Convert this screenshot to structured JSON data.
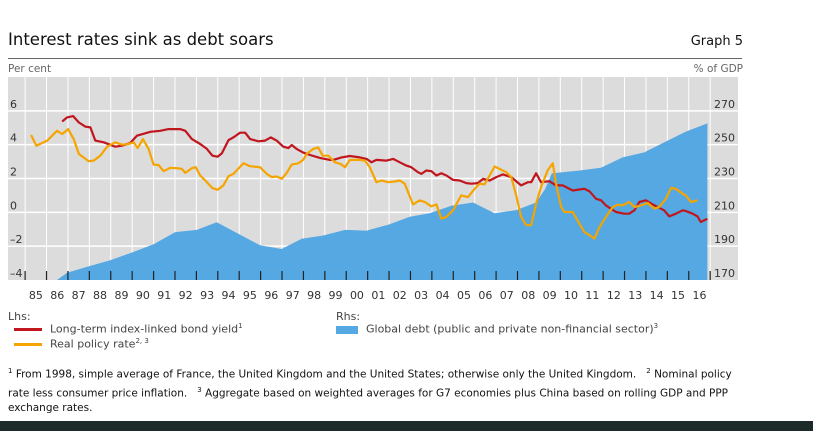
{
  "header": {
    "title": "Interest rates sink as debt soars",
    "graph_number": "Graph 5",
    "left_unit": "Per cent",
    "right_unit": "% of GDP"
  },
  "legend": {
    "lhs_label": "Lhs:",
    "rhs_label": "Rhs:",
    "items": [
      {
        "label": "Long-term index-linked bond yield",
        "sup": "1",
        "color": "#c0161d"
      },
      {
        "label": "Real policy rate",
        "sup": "2, 3",
        "color": "#f5a400"
      },
      {
        "label": "Global debt (public and private non-financial sector)",
        "sup": "3",
        "color": "#55a8e2"
      }
    ]
  },
  "footnotes": [
    {
      "sup": "1",
      "text": "From 1998, simple average of France, the United Kingdom and the United States; otherwise only the United Kingdom."
    },
    {
      "sup": "2",
      "text": "Nominal policy rate less consumer price inflation."
    },
    {
      "sup": "3",
      "text": "Aggregate based on weighted averages for G7 economies plus China based on rolling GDP and PPP exchange rates."
    }
  ],
  "chart_data": {
    "type": "line",
    "title": "Interest rates sink as debt soars",
    "xlim": [
      1984.2,
      2018.3
    ],
    "ylim_left": [
      -4,
      8
    ],
    "ylim_right": [
      170,
      290
    ],
    "yticks_left": [
      "6",
      "4",
      "2",
      "0",
      "–2",
      "–4"
    ],
    "yticks_left_values": [
      6,
      4,
      2,
      0,
      -2,
      -4
    ],
    "yticks_right": [
      "270",
      "250",
      "230",
      "210",
      "190",
      "170"
    ],
    "yticks_right_values": [
      270,
      250,
      230,
      210,
      190,
      170
    ],
    "xtick_labels": [
      "85",
      "86",
      "87",
      "88",
      "89",
      "90",
      "91",
      "92",
      "93",
      "94",
      "95",
      "96",
      "97",
      "98",
      "99",
      "00",
      "01",
      "02",
      "03",
      "04",
      "05",
      "06",
      "07",
      "08",
      "09",
      "10",
      "11",
      "12",
      "13",
      "14",
      "15",
      "16"
    ],
    "xtick_start_year": 1985,
    "grid": true,
    "series": [
      {
        "name": "Global debt (public and private non-financial sector)",
        "axis": "right",
        "type": "area",
        "color": "#55a8e2",
        "x": [
          1986.49,
          1986.96,
          1987.9,
          1988.98,
          1990.07,
          1991.0,
          1992.01,
          1993.02,
          1993.95,
          1994.96,
          1995.97,
          1996.98,
          1997.92,
          1998.93,
          1999.94,
          2000.95,
          2001.96,
          2002.97,
          2003.9,
          2004.91,
          2005.92,
          2006.93,
          2007.94,
          2008.87,
          2009.3,
          2009.6,
          2010.89,
          2011.9,
          2012.91,
          2013.92,
          2014.93,
          2015.86,
          2016.87
        ],
        "y": [
          170,
          174.3,
          177.8,
          181.7,
          186.6,
          191.1,
          198.3,
          199.6,
          204.1,
          197.3,
          190.5,
          188.3,
          194.4,
          196.3,
          199.6,
          199.2,
          202.7,
          207.4,
          209.4,
          213.9,
          215.8,
          209.4,
          211.3,
          215.8,
          224,
          233,
          234.7,
          236.3,
          242.5,
          245.4,
          251.9,
          257.7,
          262.6
        ]
      },
      {
        "name": "Long-term index-linked bond yield",
        "axis": "left",
        "color": "#c0161d",
        "x": [
          1986.73,
          1986.96,
          1987.24,
          1987.51,
          1987.82,
          1988.05,
          1988.28,
          1988.67,
          1989.21,
          1989.52,
          1989.91,
          1990.22,
          1990.85,
          1991.31,
          1991.7,
          1992.24,
          1992.48,
          1992.79,
          1993.18,
          1993.49,
          1993.75,
          1993.99,
          1994.19,
          1994.5,
          1994.73,
          1995.04,
          1995.28,
          1995.51,
          1995.9,
          1996.21,
          1996.47,
          1996.75,
          1997.06,
          1997.3,
          1997.45,
          1997.68,
          1997.99,
          1998.31,
          1998.77,
          1999.24,
          1999.39,
          1999.78,
          2000.17,
          2000.64,
          2000.95,
          2001.18,
          2001.41,
          2001.88,
          2002.19,
          2002.5,
          2002.81,
          2003.04,
          2003.35,
          2003.51,
          2003.74,
          2003.98,
          2004.21,
          2004.44,
          2004.68,
          2004.99,
          2005.3,
          2005.61,
          2005.84,
          2006.15,
          2006.39,
          2006.7,
          2007.01,
          2007.32,
          2007.71,
          2008.17,
          2008.48,
          2008.64,
          2008.87,
          2009.1,
          2009.49,
          2009.8,
          2010.11,
          2010.58,
          2010.89,
          2011.12,
          2011.36,
          2011.67,
          2011.9,
          2012.13,
          2012.6,
          2012.99,
          2013.22,
          2013.46,
          2013.69,
          2014.0,
          2014.31,
          2014.62,
          2014.85,
          2015.09,
          2015.4,
          2015.71,
          2015.86,
          2016.18,
          2016.41,
          2016.56,
          2016.72,
          2016.87
        ],
        "y": [
          5.37,
          5.61,
          5.69,
          5.31,
          5.06,
          5.02,
          4.24,
          4.14,
          3.88,
          3.94,
          4.1,
          4.53,
          4.76,
          4.82,
          4.92,
          4.92,
          4.82,
          4.33,
          4.04,
          3.75,
          3.35,
          3.29,
          3.49,
          4.27,
          4.43,
          4.71,
          4.71,
          4.33,
          4.2,
          4.24,
          4.43,
          4.24,
          3.88,
          3.8,
          3.98,
          3.75,
          3.53,
          3.39,
          3.22,
          3.1,
          3.1,
          3.25,
          3.33,
          3.25,
          3.16,
          2.96,
          3.1,
          3.06,
          3.16,
          2.96,
          2.76,
          2.67,
          2.37,
          2.27,
          2.47,
          2.43,
          2.18,
          2.31,
          2.18,
          1.92,
          1.88,
          1.73,
          1.69,
          1.73,
          1.98,
          1.88,
          2.08,
          2.24,
          2.08,
          1.59,
          1.78,
          1.78,
          2.31,
          1.78,
          1.84,
          1.59,
          1.59,
          1.29,
          1.35,
          1.39,
          1.25,
          0.8,
          0.71,
          0.41,
          0.02,
          -0.08,
          -0.08,
          0.12,
          0.61,
          0.71,
          0.47,
          0.27,
          0.12,
          -0.24,
          -0.08,
          0.12,
          0.08,
          -0.08,
          -0.24,
          -0.57,
          -0.47,
          -0.39
        ]
      },
      {
        "name": "Real policy rate",
        "axis": "left",
        "color": "#f5a400",
        "x": [
          1985.28,
          1985.52,
          1986.03,
          1986.49,
          1986.73,
          1987.01,
          1987.27,
          1987.51,
          1987.97,
          1988.2,
          1988.51,
          1988.83,
          1989.21,
          1989.52,
          1989.84,
          1990.07,
          1990.26,
          1990.5,
          1990.77,
          1991.0,
          1991.23,
          1991.47,
          1991.78,
          1992.09,
          1992.32,
          1992.48,
          1992.79,
          1992.97,
          1993.18,
          1993.49,
          1993.75,
          1993.99,
          1994.26,
          1994.5,
          1994.73,
          1995.2,
          1995.51,
          1995.97,
          1996.29,
          1996.52,
          1996.75,
          1996.99,
          1997.22,
          1997.45,
          1997.76,
          1997.99,
          1998.15,
          1998.46,
          1998.69,
          1998.9,
          1999.16,
          1999.47,
          1999.74,
          1999.94,
          2000.17,
          2000.64,
          2000.87,
          2001.1,
          2001.41,
          2001.65,
          2001.96,
          2002.27,
          2002.5,
          2002.73,
          2003.12,
          2003.43,
          2003.67,
          2003.98,
          2004.21,
          2004.44,
          2004.68,
          2004.99,
          2005.37,
          2005.69,
          2006.0,
          2006.23,
          2006.46,
          2006.7,
          2006.93,
          2007.16,
          2007.47,
          2007.71,
          2007.94,
          2008.17,
          2008.41,
          2008.64,
          2008.87,
          2009.1,
          2009.42,
          2009.65,
          2009.8,
          2010.04,
          2010.19,
          2010.58,
          2010.89,
          2011.12,
          2011.36,
          2011.59,
          2011.82,
          2012.13,
          2012.45,
          2012.68,
          2012.91,
          2013.22,
          2013.46,
          2013.77,
          2014.08,
          2014.39,
          2014.62,
          2014.93,
          2015.17,
          2015.4,
          2015.71,
          2015.86,
          2016.1,
          2016.41
        ],
        "y": [
          4.57,
          3.94,
          4.24,
          4.82,
          4.63,
          4.92,
          4.33,
          3.45,
          3.02,
          3.06,
          3.35,
          3.88,
          4.14,
          4.0,
          4.04,
          4.14,
          3.8,
          4.33,
          3.75,
          2.82,
          2.8,
          2.43,
          2.63,
          2.61,
          2.57,
          2.33,
          2.61,
          2.67,
          2.18,
          1.78,
          1.43,
          1.33,
          1.59,
          2.14,
          2.27,
          2.9,
          2.73,
          2.67,
          2.27,
          2.08,
          2.12,
          1.98,
          2.33,
          2.82,
          2.9,
          3.1,
          3.45,
          3.75,
          3.84,
          3.35,
          3.35,
          2.96,
          2.86,
          2.67,
          3.1,
          3.1,
          3.06,
          2.67,
          1.78,
          1.88,
          1.78,
          1.82,
          1.88,
          1.69,
          0.47,
          0.71,
          0.61,
          0.35,
          0.47,
          -0.37,
          -0.27,
          0.12,
          1.0,
          0.9,
          1.39,
          1.69,
          1.65,
          2.18,
          2.71,
          2.57,
          2.37,
          2.08,
          1.0,
          -0.27,
          -0.76,
          -0.76,
          0.51,
          1.49,
          2.51,
          2.9,
          1.69,
          0.31,
          0.02,
          0.02,
          -0.67,
          -1.16,
          -1.35,
          -1.55,
          -0.9,
          -0.27,
          0.31,
          0.45,
          0.41,
          0.61,
          0.31,
          0.41,
          0.55,
          0.22,
          0.31,
          0.8,
          1.45,
          1.39,
          1.1,
          1.0,
          0.61,
          0.71
        ]
      }
    ]
  }
}
